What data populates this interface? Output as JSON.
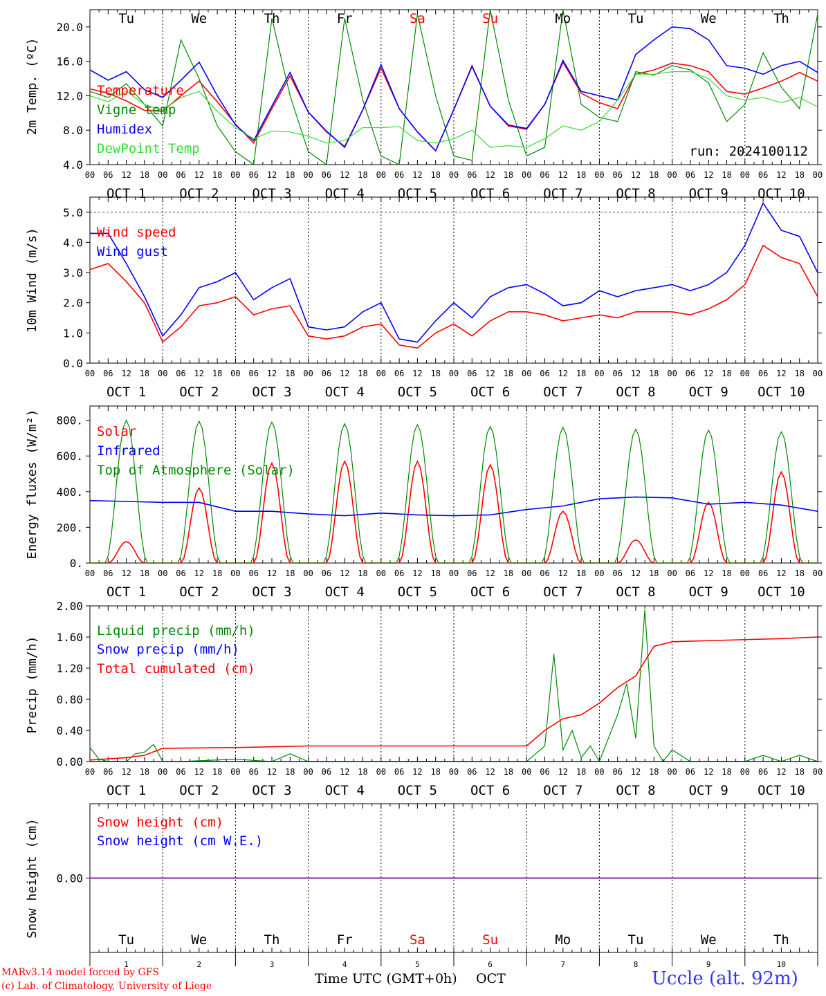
{
  "colors": {
    "red": "#ff0000",
    "green": "#008800",
    "blue": "#0000ff",
    "lightgreen": "#33dd33",
    "purple": "#7700aa",
    "black": "#000000"
  },
  "day_labels": [
    {
      "label": "Tu",
      "color": "black"
    },
    {
      "label": "We",
      "color": "black"
    },
    {
      "label": "Th",
      "color": "black"
    },
    {
      "label": "Fr",
      "color": "black"
    },
    {
      "label": "Sa",
      "color": "red"
    },
    {
      "label": "Su",
      "color": "red"
    },
    {
      "label": "Mo",
      "color": "black"
    },
    {
      "label": "Tu",
      "color": "black"
    },
    {
      "label": "We",
      "color": "black"
    },
    {
      "label": "Th",
      "color": "black"
    }
  ],
  "dates": [
    "OCT  1",
    "OCT  2",
    "OCT  3",
    "OCT  4",
    "OCT  5",
    "OCT  6",
    "OCT  7",
    "OCT  8",
    "OCT  9",
    "OCT 10"
  ],
  "hour_ticks": [
    "00",
    "06",
    "12",
    "18"
  ],
  "day_numbers": [
    "1",
    "2",
    "3",
    "4",
    "5",
    "6",
    "7",
    "8",
    "9",
    "10"
  ],
  "footer": {
    "credit1": "MARv3.14 model forced by GFS",
    "credit2": "(c) Lab. of Climatology, University of Liege",
    "axis_title": "Time UTC (GMT+0h)",
    "month": "OCT",
    "station": "Uccle (alt. 92m)"
  },
  "chart_data": [
    {
      "type": "line",
      "id": "temperature",
      "ylabel": "2m Temp. (ºC)",
      "ylim": [
        4,
        22
      ],
      "yticks": [
        "4.0",
        "8.0",
        "12.0",
        "16.0",
        "20.0"
      ],
      "ytick_values": [
        4,
        8,
        12,
        16,
        20
      ],
      "annotation": "run: 2024100112",
      "x_unit": "hours since Oct 1 00 UTC",
      "series": [
        {
          "name": "Temperature",
          "color": "red",
          "x": [
            0,
            6,
            12,
            18,
            24,
            30,
            36,
            42,
            48,
            54,
            60,
            66,
            72,
            78,
            84,
            90,
            96,
            102,
            108,
            114,
            120,
            126,
            132,
            138,
            144,
            150,
            156,
            162,
            168,
            174,
            180,
            186,
            192,
            198,
            204,
            210,
            216,
            222,
            228,
            234,
            240
          ],
          "y": [
            12.8,
            12.3,
            11.4,
            10.3,
            10.2,
            12.0,
            13.7,
            11.3,
            8.7,
            6.5,
            10.5,
            14.3,
            10.1,
            7.8,
            6.1,
            10.4,
            15.2,
            10.5,
            7.8,
            5.6,
            10.4,
            15.5,
            10.8,
            8.5,
            8.1,
            11.0,
            15.9,
            12.3,
            11.2,
            10.5,
            14.5,
            15.0,
            15.8,
            15.5,
            14.8,
            12.5,
            12.2,
            12.9,
            13.7,
            14.7,
            13.7
          ]
        },
        {
          "name": "Vigne temp",
          "color": "green",
          "x": [
            0,
            6,
            12,
            18,
            24,
            30,
            36,
            42,
            48,
            54,
            60,
            66,
            72,
            78,
            84,
            90,
            96,
            102,
            108,
            114,
            120,
            126,
            132,
            138,
            144,
            150,
            156,
            162,
            168,
            174,
            180,
            186,
            192,
            198,
            204,
            210,
            216,
            222,
            228,
            234,
            240
          ],
          "y": [
            12.5,
            11.8,
            13.4,
            11.0,
            8.5,
            18.5,
            14.0,
            8.5,
            5.5,
            4.0,
            21.0,
            12.0,
            5.5,
            4.0,
            21.0,
            11.5,
            5.0,
            3.8,
            21.5,
            12.0,
            5.0,
            4.5,
            22.0,
            11.5,
            5.0,
            6.0,
            22.0,
            11.0,
            9.5,
            9.0,
            14.8,
            14.4,
            15.5,
            15.0,
            13.5,
            9.0,
            11.0,
            17.0,
            13.0,
            10.5,
            21.5
          ]
        },
        {
          "name": "Humidex",
          "color": "blue",
          "x": [
            0,
            6,
            12,
            18,
            24,
            30,
            36,
            42,
            48,
            54,
            60,
            66,
            72,
            78,
            84,
            90,
            96,
            102,
            108,
            114,
            120,
            126,
            132,
            138,
            144,
            150,
            156,
            162,
            168,
            174,
            180,
            186,
            192,
            198,
            204,
            210,
            216,
            222,
            228,
            234,
            240
          ],
          "y": [
            15.0,
            13.8,
            14.8,
            12.7,
            11.8,
            13.8,
            15.9,
            12.0,
            8.6,
            6.8,
            10.8,
            14.7,
            10.1,
            7.9,
            6.0,
            10.4,
            15.6,
            10.5,
            7.8,
            5.6,
            10.4,
            15.4,
            10.8,
            8.6,
            8.2,
            11.0,
            16.1,
            12.5,
            12.0,
            11.5,
            16.8,
            18.5,
            20.0,
            19.8,
            18.5,
            15.5,
            15.2,
            14.5,
            15.5,
            16.0,
            14.7
          ]
        },
        {
          "name": "DewPoint Temp",
          "color": "lightgreen",
          "x": [
            0,
            6,
            12,
            18,
            24,
            30,
            36,
            42,
            48,
            54,
            60,
            66,
            72,
            78,
            84,
            90,
            96,
            102,
            108,
            114,
            120,
            126,
            132,
            138,
            144,
            150,
            156,
            162,
            168,
            174,
            180,
            186,
            192,
            198,
            204,
            210,
            216,
            222,
            228,
            234,
            240
          ],
          "y": [
            12.0,
            11.3,
            12.5,
            11.0,
            10.3,
            11.8,
            12.5,
            10.2,
            8.3,
            7.0,
            7.9,
            7.8,
            7.3,
            6.5,
            6.8,
            8.3,
            8.3,
            8.4,
            6.8,
            6.5,
            7.0,
            8.0,
            6.0,
            6.2,
            6.0,
            7.0,
            8.5,
            8.0,
            9.0,
            11.5,
            14.5,
            14.5,
            14.8,
            14.8,
            14.0,
            12.0,
            11.5,
            11.8,
            11.2,
            11.8,
            10.7
          ]
        }
      ]
    },
    {
      "type": "line",
      "id": "wind",
      "ylabel": "10m Wind (m/s)",
      "ylim": [
        0,
        5.5
      ],
      "yticks": [
        "0.0",
        "1.0",
        "2.0",
        "3.0",
        "4.0",
        "5.0"
      ],
      "ytick_values": [
        0,
        1,
        2,
        3,
        4,
        5
      ],
      "reference_line": 5.0,
      "series": [
        {
          "name": "Wind speed",
          "color": "red",
          "x": [
            0,
            6,
            12,
            18,
            24,
            30,
            36,
            42,
            48,
            54,
            60,
            66,
            72,
            78,
            84,
            90,
            96,
            102,
            108,
            114,
            120,
            126,
            132,
            138,
            144,
            150,
            156,
            162,
            168,
            174,
            180,
            186,
            192,
            198,
            204,
            210,
            216,
            222,
            228,
            234,
            240
          ],
          "y": [
            3.1,
            3.3,
            2.7,
            2.0,
            0.7,
            1.2,
            1.9,
            2.0,
            2.2,
            1.6,
            1.8,
            1.9,
            0.9,
            0.8,
            0.9,
            1.2,
            1.3,
            0.6,
            0.5,
            1.0,
            1.3,
            0.9,
            1.4,
            1.7,
            1.7,
            1.6,
            1.4,
            1.5,
            1.6,
            1.5,
            1.7,
            1.7,
            1.7,
            1.6,
            1.8,
            2.1,
            2.6,
            3.9,
            3.5,
            3.3,
            2.2
          ]
        },
        {
          "name": "Wind gust",
          "color": "blue",
          "x": [
            0,
            6,
            12,
            18,
            24,
            30,
            36,
            42,
            48,
            54,
            60,
            66,
            72,
            78,
            84,
            90,
            96,
            102,
            108,
            114,
            120,
            126,
            132,
            138,
            144,
            150,
            156,
            162,
            168,
            174,
            180,
            186,
            192,
            198,
            204,
            210,
            216,
            222,
            228,
            234,
            240
          ],
          "y": [
            4.3,
            4.3,
            3.3,
            2.2,
            0.9,
            1.6,
            2.5,
            2.7,
            3.0,
            2.1,
            2.5,
            2.8,
            1.2,
            1.1,
            1.2,
            1.7,
            2.0,
            0.8,
            0.7,
            1.4,
            2.0,
            1.5,
            2.2,
            2.5,
            2.6,
            2.3,
            1.9,
            2.0,
            2.4,
            2.2,
            2.4,
            2.5,
            2.6,
            2.4,
            2.6,
            3.0,
            3.9,
            5.3,
            4.4,
            4.2,
            3.0
          ]
        }
      ]
    },
    {
      "type": "line",
      "id": "energy",
      "ylabel": "Energy fluxes (W/m²)",
      "ylim": [
        0,
        880
      ],
      "yticks": [
        "0.",
        "200.",
        "400.",
        "600.",
        "800."
      ],
      "ytick_values": [
        0,
        200,
        400,
        600,
        800
      ],
      "series": [
        {
          "name": "Solar",
          "color": "red",
          "peaks": [
            {
              "day": 0,
              "peak": 120
            },
            {
              "day": 1,
              "peak": 420
            },
            {
              "day": 2,
              "peak": 560
            },
            {
              "day": 3,
              "peak": 570
            },
            {
              "day": 4,
              "peak": 570
            },
            {
              "day": 5,
              "peak": 550
            },
            {
              "day": 6,
              "peak": 290
            },
            {
              "day": 7,
              "peak": 130
            },
            {
              "day": 8,
              "peak": 340
            },
            {
              "day": 9,
              "peak": 510
            }
          ]
        },
        {
          "name": "Infrared",
          "color": "blue",
          "x": [
            0,
            12,
            24,
            36,
            48,
            60,
            72,
            84,
            96,
            108,
            120,
            132,
            144,
            156,
            168,
            180,
            192,
            204,
            216,
            228,
            240
          ],
          "y": [
            350,
            345,
            340,
            340,
            290,
            290,
            275,
            265,
            280,
            270,
            265,
            270,
            300,
            320,
            360,
            370,
            365,
            330,
            340,
            325,
            290
          ]
        },
        {
          "name": "Top of Atmosphere (Solar)",
          "color": "green",
          "peaks": [
            {
              "day": 0,
              "peak": 800
            },
            {
              "day": 1,
              "peak": 795
            },
            {
              "day": 2,
              "peak": 790
            },
            {
              "day": 3,
              "peak": 780
            },
            {
              "day": 4,
              "peak": 775
            },
            {
              "day": 5,
              "peak": 765
            },
            {
              "day": 6,
              "peak": 760
            },
            {
              "day": 7,
              "peak": 750
            },
            {
              "day": 8,
              "peak": 745
            },
            {
              "day": 9,
              "peak": 735
            }
          ]
        }
      ]
    },
    {
      "type": "line",
      "id": "precip",
      "ylabel": "Precip (mm/h)",
      "ylim": [
        0,
        2.0
      ],
      "yticks": [
        "0.00",
        "0.40",
        "0.80",
        "1.20",
        "1.60",
        "2.00"
      ],
      "ytick_values": [
        0,
        0.4,
        0.8,
        1.2,
        1.6,
        2.0
      ],
      "series": [
        {
          "name": "Liquid precip (mm/h)",
          "color": "green",
          "x": [
            0,
            3,
            6,
            12,
            15,
            18,
            21,
            24,
            30,
            48,
            60,
            66,
            72,
            144,
            150,
            153,
            156,
            159,
            162,
            165,
            168,
            171,
            174,
            177,
            180,
            183,
            186,
            189,
            192,
            198,
            216,
            222,
            228,
            234,
            240
          ],
          "y": [
            0.18,
            0.03,
            0.0,
            0.0,
            0.1,
            0.12,
            0.22,
            0.0,
            0.0,
            0.03,
            0.0,
            0.1,
            0.0,
            0.0,
            0.2,
            1.38,
            0.15,
            0.4,
            0.05,
            0.2,
            0.0,
            0.3,
            0.6,
            1.0,
            0.3,
            1.95,
            0.2,
            0.0,
            0.15,
            0.0,
            0.0,
            0.08,
            0.0,
            0.08,
            0.0
          ]
        },
        {
          "name": "Snow precip (mm/h)",
          "color": "blue",
          "x": [
            0,
            240
          ],
          "y": [
            0,
            0
          ]
        },
        {
          "name": "Total cumulated (cm)",
          "color": "red",
          "x": [
            0,
            12,
            18,
            24,
            48,
            72,
            144,
            150,
            156,
            162,
            168,
            174,
            180,
            186,
            192,
            210,
            228,
            240
          ],
          "y": [
            0.02,
            0.05,
            0.08,
            0.17,
            0.18,
            0.2,
            0.2,
            0.4,
            0.55,
            0.6,
            0.75,
            0.95,
            1.1,
            1.48,
            1.54,
            1.56,
            1.58,
            1.6
          ]
        }
      ]
    },
    {
      "type": "line",
      "id": "snow",
      "ylabel": "Snow height (cm)",
      "ylim": [
        -1,
        1
      ],
      "yticks": [
        "0.00"
      ],
      "ytick_values": [
        0
      ],
      "series": [
        {
          "name": "Snow height (cm)",
          "color": "red",
          "x": [
            0,
            240
          ],
          "y": [
            0,
            0
          ]
        },
        {
          "name": "Snow height (cm W.E.)",
          "color": "blue",
          "x": [
            0,
            240
          ],
          "y": [
            0,
            0
          ]
        }
      ]
    }
  ]
}
